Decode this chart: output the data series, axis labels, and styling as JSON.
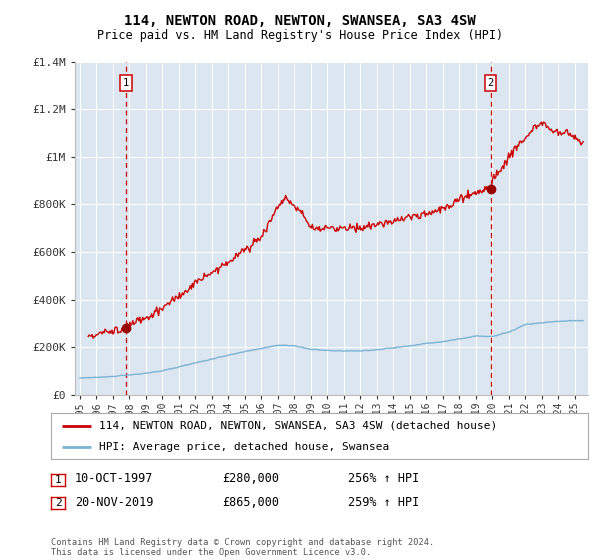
{
  "title": "114, NEWTON ROAD, NEWTON, SWANSEA, SA3 4SW",
  "subtitle": "Price paid vs. HM Land Registry's House Price Index (HPI)",
  "ylim": [
    0,
    1400000
  ],
  "yticks": [
    0,
    200000,
    400000,
    600000,
    800000,
    1000000,
    1200000,
    1400000
  ],
  "ytick_labels": [
    "£0",
    "£200K",
    "£400K",
    "£600K",
    "£800K",
    "£1M",
    "£1.2M",
    "£1.4M"
  ],
  "xlim_start": 1994.7,
  "xlim_end": 2025.8,
  "xticks": [
    1995,
    1996,
    1997,
    1998,
    1999,
    2000,
    2001,
    2002,
    2003,
    2004,
    2005,
    2006,
    2007,
    2008,
    2009,
    2010,
    2011,
    2012,
    2013,
    2014,
    2015,
    2016,
    2017,
    2018,
    2019,
    2020,
    2021,
    2022,
    2023,
    2024,
    2025
  ],
  "legend_line1": "114, NEWTON ROAD, NEWTON, SWANSEA, SA3 4SW (detached house)",
  "legend_line2": "HPI: Average price, detached house, Swansea",
  "sale1_date": "10-OCT-1997",
  "sale1_price": "£280,000",
  "sale1_hpi": "256% ↑ HPI",
  "sale1_x": 1997.78,
  "sale1_y": 280000,
  "sale2_date": "20-NOV-2019",
  "sale2_price": "£865,000",
  "sale2_hpi": "259% ↑ HPI",
  "sale2_x": 2019.89,
  "sale2_y": 865000,
  "footnote": "Contains HM Land Registry data © Crown copyright and database right 2024.\nThis data is licensed under the Open Government Licence v3.0.",
  "bg_color": "#dce6f1",
  "red_line_color": "#cc0000",
  "blue_line_color": "#7ab3d4",
  "marker_color": "#990000",
  "dashed_line_color": "#cc0000",
  "grid_color": "#ffffff"
}
